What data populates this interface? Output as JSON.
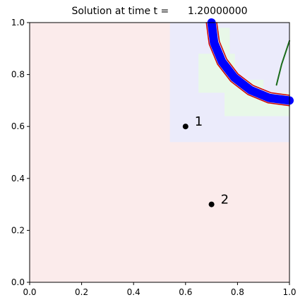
{
  "chart_data": {
    "type": "scatter",
    "title": "Solution at time t =      1.20000000",
    "xlim": [
      0,
      1
    ],
    "ylim": [
      0,
      1
    ],
    "xticks": [
      {
        "value": 0,
        "label": "0.0"
      },
      0.2,
      0.4,
      0.6,
      0.8,
      {
        "value": 1,
        "label": "1.0"
      }
    ],
    "yticks": [
      {
        "value": 0,
        "label": "0.0"
      },
      0.2,
      0.4,
      0.6,
      0.8,
      {
        "value": 1,
        "label": "1.0"
      }
    ],
    "grid": false,
    "patches": [
      {
        "color": "#fbebeb",
        "x": [
          0,
          1
        ],
        "y": [
          0,
          1
        ]
      },
      {
        "color": "#ebebfb",
        "x": [
          0.54,
          1
        ],
        "y": [
          0.54,
          1
        ]
      },
      {
        "color": "#e8f8e8",
        "x": [
          0.65,
          0.79
        ],
        "y": [
          0.73,
          0.88
        ]
      },
      {
        "color": "#e8f8e8",
        "x": [
          0.75,
          0.9
        ],
        "y": [
          0.64,
          0.78
        ]
      },
      {
        "color": "#e8f8e8",
        "x": [
          0.86,
          1
        ],
        "y": [
          0.64,
          0.73
        ]
      },
      {
        "color": "#e8f8e8",
        "x": [
          0.72,
          0.77
        ],
        "y": [
          0.88,
          0.98
        ]
      }
    ],
    "series": [
      {
        "color": "#0000ff",
        "width": 12,
        "x": [
          0.7,
          0.71,
          0.74,
          0.788,
          0.85,
          0.922,
          1.0
        ],
        "y": [
          1.0,
          0.922,
          0.85,
          0.788,
          0.74,
          0.71,
          0.7
        ]
      },
      {
        "color": "#cc0000",
        "width": 1.5,
        "x": [
          0.72,
          0.73,
          0.758,
          0.802,
          0.86,
          0.928,
          1.0
        ],
        "y": [
          1.0,
          0.928,
          0.86,
          0.802,
          0.758,
          0.73,
          0.72
        ]
      },
      {
        "color": "#cc0000",
        "width": 1.5,
        "x": [
          0.68,
          0.691,
          0.723,
          0.774,
          0.84,
          0.917,
          1.0
        ],
        "y": [
          1.0,
          0.917,
          0.84,
          0.774,
          0.723,
          0.691,
          0.68
        ]
      },
      {
        "color": "#1a6b1a",
        "width": 2,
        "x": [
          0.95,
          0.97,
          1.0
        ],
        "y": [
          0.76,
          0.84,
          0.93
        ]
      }
    ],
    "gauges": {
      "color": "#000000",
      "x": [
        0.6,
        0.7
      ],
      "y": [
        0.6,
        0.3
      ],
      "labels": [
        "1",
        "2"
      ]
    }
  }
}
